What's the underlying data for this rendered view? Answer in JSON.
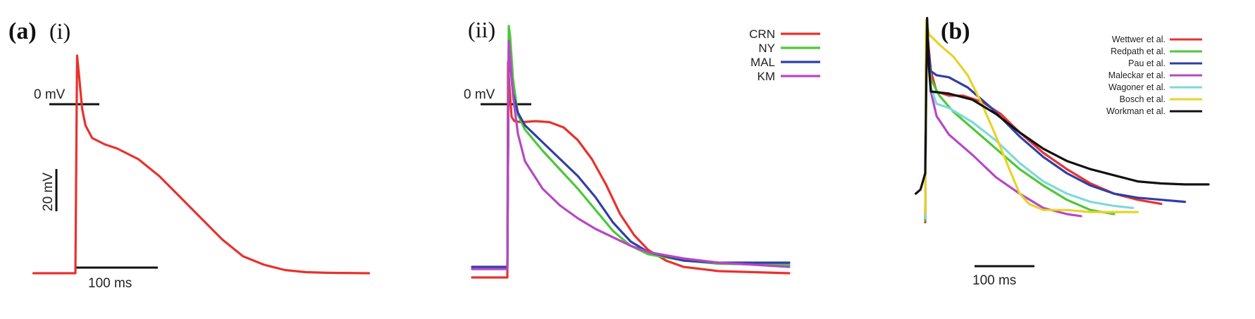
{
  "colors": {
    "red": "#e8322d",
    "green": "#4dc83a",
    "blue": "#2f3fa6",
    "magenta": "#b648c4",
    "cyan": "#7fd9d8",
    "yellow": "#e6d32a",
    "black": "#111111"
  },
  "chart_data": [
    {
      "type": "line",
      "panel_label": "(a)",
      "panel_sublabel": "(i)",
      "scale_bars": {
        "voltage": "20 mV",
        "time": "100 ms",
        "zero_level": "0 mV"
      },
      "series": [
        {
          "color": "red",
          "points": [
            [
              -50,
              -80
            ],
            [
              0,
              -80
            ],
            [
              2,
              23
            ],
            [
              4,
              15
            ],
            [
              8,
              -2
            ],
            [
              12,
              -10
            ],
            [
              20,
              -16
            ],
            [
              35,
              -19
            ],
            [
              50,
              -21
            ],
            [
              75,
              -26
            ],
            [
              100,
              -34
            ],
            [
              125,
              -44
            ],
            [
              150,
              -54
            ],
            [
              175,
              -64
            ],
            [
              200,
              -72
            ],
            [
              225,
              -76
            ],
            [
              250,
              -78.5
            ],
            [
              275,
              -79.5
            ],
            [
              300,
              -79.8
            ],
            [
              350,
              -80
            ]
          ]
        }
      ]
    },
    {
      "type": "line",
      "panel_label": "",
      "panel_sublabel": "(ii)",
      "scale_bars": {
        "zero_level": "0 mV"
      },
      "series": [
        {
          "name": "CRN",
          "color": "red",
          "points": [
            [
              -50,
              -82
            ],
            [
              0,
              -82
            ],
            [
              1,
              20
            ],
            [
              3,
              8
            ],
            [
              6,
              -6
            ],
            [
              10,
              -8
            ],
            [
              20,
              -8.5
            ],
            [
              40,
              -8
            ],
            [
              60,
              -8.5
            ],
            [
              80,
              -11
            ],
            [
              100,
              -17
            ],
            [
              120,
              -26
            ],
            [
              140,
              -38
            ],
            [
              160,
              -52
            ],
            [
              180,
              -62
            ],
            [
              200,
              -69
            ],
            [
              225,
              -74
            ],
            [
              250,
              -77
            ],
            [
              300,
              -79
            ],
            [
              400,
              -80
            ]
          ]
        },
        {
          "name": "NY",
          "color": "green",
          "points": [
            [
              -50,
              -78
            ],
            [
              0,
              -78
            ],
            [
              2,
              37
            ],
            [
              4,
              32
            ],
            [
              8,
              12
            ],
            [
              15,
              -5
            ],
            [
              25,
              -12
            ],
            [
              50,
              -22
            ],
            [
              75,
              -31
            ],
            [
              100,
              -40
            ],
            [
              125,
              -50
            ],
            [
              150,
              -60
            ],
            [
              175,
              -67
            ],
            [
              200,
              -71
            ],
            [
              250,
              -74
            ],
            [
              300,
              -75.5
            ],
            [
              400,
              -76
            ]
          ]
        },
        {
          "name": "MAL",
          "color": "blue",
          "points": [
            [
              -50,
              -77
            ],
            [
              0,
              -77
            ],
            [
              2,
              25
            ],
            [
              4,
              20
            ],
            [
              8,
              5
            ],
            [
              15,
              -4
            ],
            [
              25,
              -10
            ],
            [
              50,
              -18
            ],
            [
              75,
              -26
            ],
            [
              100,
              -34
            ],
            [
              125,
              -44
            ],
            [
              150,
              -56
            ],
            [
              175,
              -65
            ],
            [
              200,
              -70
            ],
            [
              250,
              -74
            ],
            [
              300,
              -75
            ],
            [
              400,
              -75
            ]
          ]
        },
        {
          "name": "KM",
          "color": "magenta",
          "points": [
            [
              -50,
              -78
            ],
            [
              0,
              -78
            ],
            [
              2,
              30
            ],
            [
              4,
              22
            ],
            [
              8,
              4
            ],
            [
              15,
              -14
            ],
            [
              25,
              -27
            ],
            [
              50,
              -40
            ],
            [
              75,
              -48
            ],
            [
              100,
              -54
            ],
            [
              125,
              -59
            ],
            [
              150,
              -63
            ],
            [
              175,
              -67
            ],
            [
              200,
              -70
            ],
            [
              250,
              -73
            ],
            [
              300,
              -75
            ],
            [
              400,
              -77
            ]
          ]
        }
      ]
    },
    {
      "type": "line",
      "panel_label": "(b)",
      "scale_bars": {
        "time": "100 ms"
      },
      "series": [
        {
          "name": "Wettwer et al.",
          "color": "red",
          "points": [
            [
              0,
              -84
            ],
            [
              1,
              10
            ],
            [
              3,
              5
            ],
            [
              6,
              -10
            ],
            [
              12,
              -20
            ],
            [
              25,
              -22
            ],
            [
              40,
              -22
            ],
            [
              60,
              -25
            ],
            [
              80,
              -31
            ],
            [
              100,
              -40
            ],
            [
              125,
              -50
            ],
            [
              150,
              -58
            ],
            [
              175,
              -65
            ],
            [
              200,
              -70
            ],
            [
              225,
              -73
            ],
            [
              250,
              -75
            ]
          ]
        },
        {
          "name": "Redpath et al.",
          "color": "green",
          "points": [
            [
              0,
              -83
            ],
            [
              1,
              12
            ],
            [
              3,
              0
            ],
            [
              6,
              -14
            ],
            [
              15,
              -22
            ],
            [
              30,
              -30
            ],
            [
              50,
              -38
            ],
            [
              75,
              -48
            ],
            [
              100,
              -58
            ],
            [
              125,
              -66
            ],
            [
              150,
              -73
            ],
            [
              175,
              -78
            ],
            [
              200,
              -80
            ]
          ]
        },
        {
          "name": "Pau et al.",
          "color": "blue",
          "points": [
            [
              0,
              -82
            ],
            [
              1,
              10
            ],
            [
              3,
              2
            ],
            [
              6,
              -10
            ],
            [
              12,
              -12
            ],
            [
              25,
              -13
            ],
            [
              45,
              -18
            ],
            [
              70,
              -28
            ],
            [
              100,
              -42
            ],
            [
              125,
              -52
            ],
            [
              150,
              -60
            ],
            [
              175,
              -66
            ],
            [
              200,
              -70
            ],
            [
              225,
              -72
            ],
            [
              250,
              -73
            ],
            [
              275,
              -74
            ]
          ]
        },
        {
          "name": "Maleckar et al.",
          "color": "magenta",
          "points": [
            [
              0,
              -82
            ],
            [
              1,
              12
            ],
            [
              3,
              -3
            ],
            [
              6,
              -20
            ],
            [
              12,
              -32
            ],
            [
              25,
              -41
            ],
            [
              50,
              -51
            ],
            [
              75,
              -62
            ],
            [
              100,
              -70
            ],
            [
              125,
              -77
            ],
            [
              150,
              -80
            ],
            [
              165,
              -81
            ]
          ]
        },
        {
          "name": "Wagoner et al.",
          "color": "cyan",
          "points": [
            [
              0,
              -82
            ],
            [
              1,
              14
            ],
            [
              3,
              -2
            ],
            [
              6,
              -18
            ],
            [
              12,
              -26
            ],
            [
              25,
              -28
            ],
            [
              50,
              -35
            ],
            [
              75,
              -44
            ],
            [
              100,
              -55
            ],
            [
              125,
              -64
            ],
            [
              150,
              -70
            ],
            [
              175,
              -74
            ],
            [
              200,
              -76
            ],
            [
              220,
              -77
            ]
          ]
        },
        {
          "name": "Bosch et al.",
          "color": "yellow",
          "points": [
            [
              0,
              -80
            ],
            [
              1,
              15
            ],
            [
              4,
              8
            ],
            [
              15,
              3
            ],
            [
              30,
              -3
            ],
            [
              45,
              -12
            ],
            [
              60,
              -26
            ],
            [
              75,
              -42
            ],
            [
              90,
              -59
            ],
            [
              100,
              -70
            ],
            [
              110,
              -75
            ],
            [
              125,
              -78
            ],
            [
              150,
              -78
            ],
            [
              175,
              -79
            ],
            [
              200,
              -79
            ],
            [
              225,
              -79
            ]
          ]
        },
        {
          "name": "Workman et al.",
          "color": "black",
          "points": [
            [
              -10,
              -70
            ],
            [
              -5,
              -68
            ],
            [
              0,
              -60
            ],
            [
              2,
              16
            ],
            [
              4,
              -8
            ],
            [
              6,
              -20
            ],
            [
              25,
              -21
            ],
            [
              50,
              -24
            ],
            [
              75,
              -31
            ],
            [
              100,
              -40
            ],
            [
              125,
              -48
            ],
            [
              150,
              -54
            ],
            [
              175,
              -58
            ],
            [
              200,
              -61
            ],
            [
              225,
              -64
            ],
            [
              250,
              -65
            ],
            [
              275,
              -65.5
            ],
            [
              300,
              -65.5
            ]
          ]
        }
      ]
    }
  ]
}
